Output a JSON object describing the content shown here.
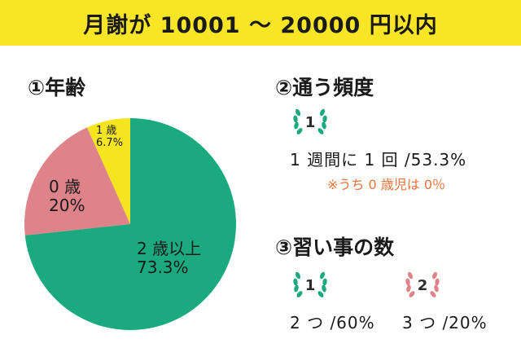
{
  "header": {
    "title": "月謝が 10001 〜 20000 円以内"
  },
  "age_section": {
    "title": "①年齢"
  },
  "chart_data": {
    "type": "pie",
    "title": "",
    "slices": [
      {
        "label": "1 歳",
        "value": 6.7,
        "display": "6.7%",
        "color": "#f5e51e"
      },
      {
        "label": "0 歳",
        "value": 20,
        "display": "20%",
        "color": "#de8389"
      },
      {
        "label": "2 歳以上",
        "value": 73.3,
        "display": "73.3%",
        "color": "#1ba97f"
      }
    ]
  },
  "frequency_section": {
    "title": "②通う頻度",
    "rank": "1",
    "text": "1 週間に 1 回 /53.3%",
    "note": "※うち 0 歳児は 0％"
  },
  "lessons_section": {
    "title": "③習い事の数",
    "items": [
      {
        "rank": "1",
        "text": "2 つ /60%"
      },
      {
        "rank": "2",
        "text": "3 つ /20%"
      }
    ]
  },
  "colors": {
    "banner": "#f7e526",
    "laurel_green": "#1ba97f",
    "laurel_pink": "#de8389",
    "note": "#e8733a"
  },
  "icons": {
    "laurel": "laurel-wreath-icon"
  }
}
